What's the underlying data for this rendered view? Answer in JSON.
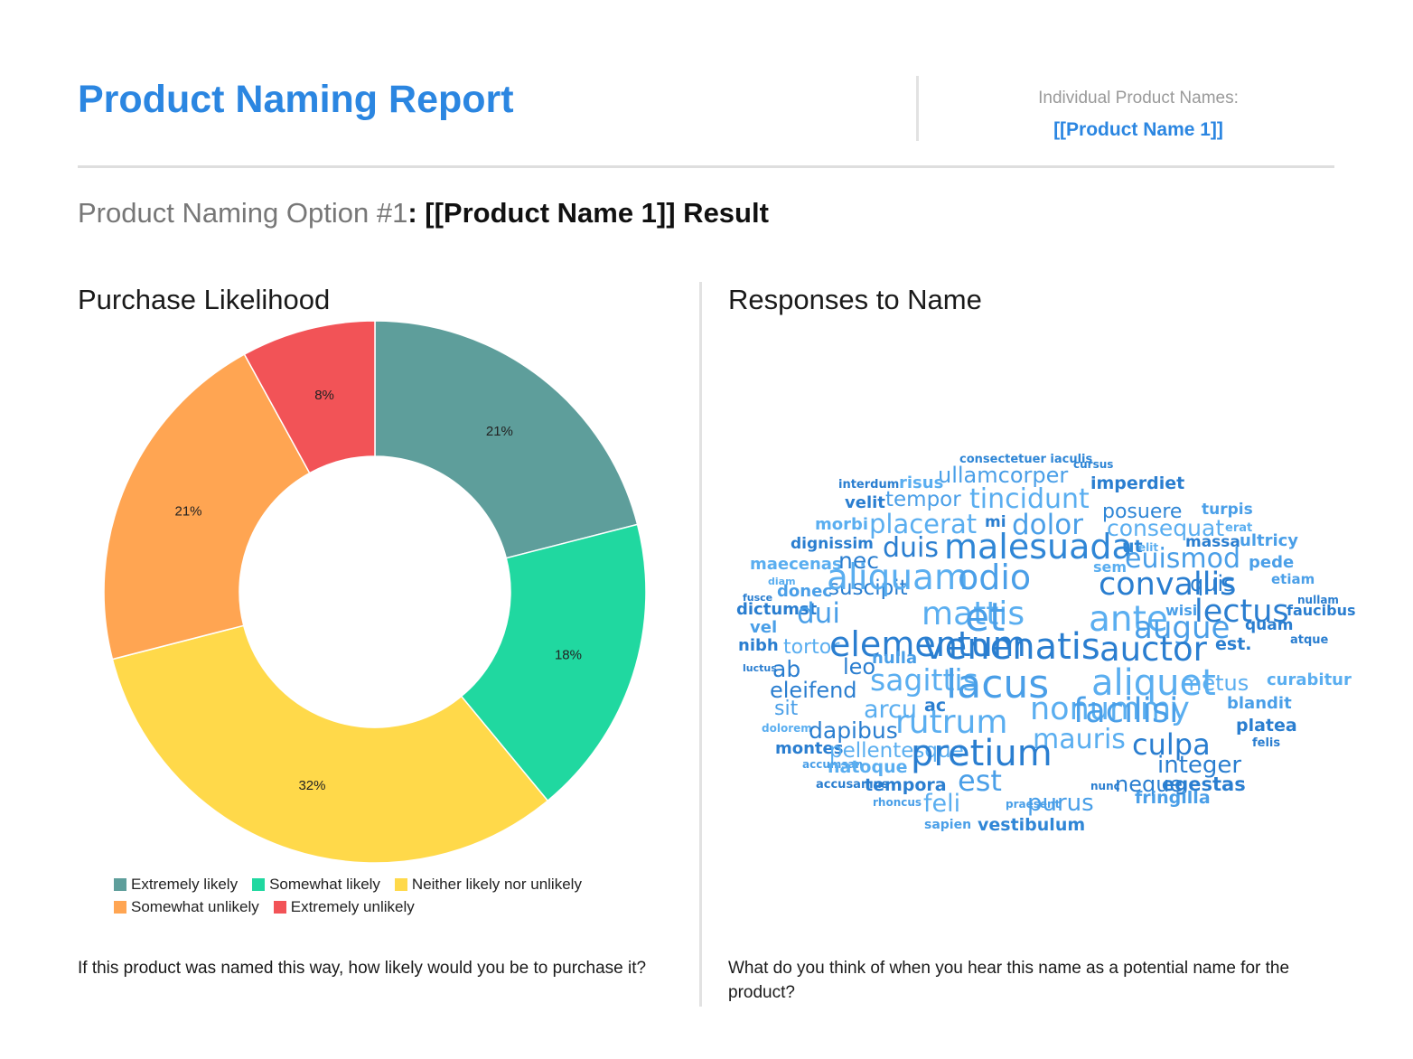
{
  "header": {
    "title": "Product Naming Report",
    "individual_label": "Individual Product Names:",
    "individual_value": "[[Product Name 1]]"
  },
  "option": {
    "prefix": "Product Naming Option #1",
    "colon": ":",
    "name": "[[Product Name 1]] Result"
  },
  "left": {
    "title": "Purchase Likelihood",
    "question": "If this product was named this way, how likely would you be to purchase it?"
  },
  "right": {
    "title": "Responses to Name",
    "question": "What do you think of when you hear this name as a potential name for the product?"
  },
  "chart_data": {
    "type": "pie",
    "donut": true,
    "categories": [
      "Extremely likely",
      "Somewhat likely",
      "Neither likely nor unlikely",
      "Somewhat unlikely",
      "Extremely unlikely"
    ],
    "values": [
      21,
      18,
      32,
      21,
      8
    ],
    "labels": [
      "21%",
      "18%",
      "32%",
      "21%",
      "8%"
    ],
    "colors": [
      "#5e9e9b",
      "#20d8a0",
      "#ffd94a",
      "#ffa552",
      "#f25357"
    ],
    "legend": "bottom"
  },
  "word_cloud": [
    {
      "text": "consectetuer iaculis",
      "color": "#2f86d6"
    },
    {
      "text": "cursus",
      "color": "#2f86d6"
    },
    {
      "text": "ullamcorper",
      "color": "#4a9fe8"
    },
    {
      "text": "interdum",
      "color": "#2a7ed0"
    },
    {
      "text": "risus",
      "color": "#5aaef0"
    },
    {
      "text": "imperdiet",
      "color": "#2a7ed0"
    },
    {
      "text": "velit",
      "color": "#2a7ed0"
    },
    {
      "text": "tempor",
      "color": "#4a9fe8"
    },
    {
      "text": "tincidunt",
      "color": "#5aaef0"
    },
    {
      "text": "posuere",
      "color": "#2f86d6"
    },
    {
      "text": "turpis",
      "color": "#4a9fe8"
    },
    {
      "text": "morbi",
      "color": "#5aaef0"
    },
    {
      "text": "placerat",
      "color": "#5aaef0"
    },
    {
      "text": "mi",
      "color": "#2a7ed0"
    },
    {
      "text": "dolor",
      "color": "#4a9fe8"
    },
    {
      "text": "consequat",
      "color": "#5aaef0"
    },
    {
      "text": "erat",
      "color": "#5aaef0"
    },
    {
      "text": "dignissim",
      "color": "#2a7ed0"
    },
    {
      "text": "duis",
      "color": "#2a7ed0"
    },
    {
      "text": "malesuada",
      "color": "#2f86d6"
    },
    {
      "text": "ut",
      "color": "#2f86d6"
    },
    {
      "text": "elit",
      "color": "#5aaef0"
    },
    {
      "text": "massa",
      "color": "#2a7ed0"
    },
    {
      "text": "ultricy",
      "color": "#4a9fe8"
    },
    {
      "text": "maecenas",
      "color": "#5aaef0"
    },
    {
      "text": "nec",
      "color": "#2a7ed0"
    },
    {
      "text": "sem",
      "color": "#5aaef0"
    },
    {
      "text": "euismod",
      "color": "#4a9fe8"
    },
    {
      "text": "pede",
      "color": "#4a9fe8"
    },
    {
      "text": "diam",
      "color": "#5aaef0"
    },
    {
      "text": "suscipit",
      "color": "#2a7ed0"
    },
    {
      "text": "aliquam",
      "color": "#5aaef0"
    },
    {
      "text": "odio",
      "color": "#4a9fe8"
    },
    {
      "text": "convallis",
      "color": "#2a7ed0"
    },
    {
      "text": "quis",
      "color": "#2a7ed0"
    },
    {
      "text": "etiam",
      "color": "#4a9fe8"
    },
    {
      "text": "fusce",
      "color": "#2a7ed0"
    },
    {
      "text": "donec",
      "color": "#4a9fe8"
    },
    {
      "text": "nullam",
      "color": "#2a7ed0"
    },
    {
      "text": "dictumst",
      "color": "#2a7ed0"
    },
    {
      "text": "dui",
      "color": "#4a9fe8"
    },
    {
      "text": "mattis",
      "color": "#5aaef0"
    },
    {
      "text": "et",
      "color": "#4a9fe8"
    },
    {
      "text": "ante",
      "color": "#5aaef0"
    },
    {
      "text": "wisi",
      "color": "#4a9fe8"
    },
    {
      "text": "lectus",
      "color": "#2a7ed0"
    },
    {
      "text": "faucibus",
      "color": "#2a7ed0"
    },
    {
      "text": "vel",
      "color": "#4a9fe8"
    },
    {
      "text": "augue",
      "color": "#4a9fe8"
    },
    {
      "text": "quam",
      "color": "#2a7ed0"
    },
    {
      "text": "nibh",
      "color": "#2a7ed0"
    },
    {
      "text": "tortor",
      "color": "#5aaef0"
    },
    {
      "text": "elementum",
      "color": "#2a7ed0"
    },
    {
      "text": "venenatis",
      "color": "#2a7ed0"
    },
    {
      "text": "auctor",
      "color": "#2a7ed0"
    },
    {
      "text": "est.",
      "color": "#2a7ed0"
    },
    {
      "text": "atque",
      "color": "#2a7ed0"
    },
    {
      "text": "luctus",
      "color": "#2a7ed0"
    },
    {
      "text": "ab",
      "color": "#2a7ed0"
    },
    {
      "text": "leo",
      "color": "#2a7ed0"
    },
    {
      "text": "nulla",
      "color": "#4a9fe8"
    },
    {
      "text": "sagittis",
      "color": "#5aaef0"
    },
    {
      "text": "lacus",
      "color": "#4a9fe8"
    },
    {
      "text": "aliquet",
      "color": "#5aaef0"
    },
    {
      "text": "metus",
      "color": "#5aaef0"
    },
    {
      "text": "curabitur",
      "color": "#5aaef0"
    },
    {
      "text": "eleifend",
      "color": "#2a7ed0"
    },
    {
      "text": "sit",
      "color": "#4a9fe8"
    },
    {
      "text": "arcu",
      "color": "#5aaef0"
    },
    {
      "text": "ac",
      "color": "#2a7ed0"
    },
    {
      "text": "nonummy",
      "color": "#5aaef0"
    },
    {
      "text": "facilisi",
      "color": "#4a9fe8"
    },
    {
      "text": "blandit",
      "color": "#4a9fe8"
    },
    {
      "text": "dolorem",
      "color": "#5aaef0"
    },
    {
      "text": "dapibus",
      "color": "#2a7ed0"
    },
    {
      "text": "rutrum",
      "color": "#5aaef0"
    },
    {
      "text": "mauris",
      "color": "#5aaef0"
    },
    {
      "text": "platea",
      "color": "#2a7ed0"
    },
    {
      "text": "montes",
      "color": "#2a7ed0"
    },
    {
      "text": "pellentesque",
      "color": "#5aaef0"
    },
    {
      "text": "pretium",
      "color": "#2a7ed0"
    },
    {
      "text": "culpa",
      "color": "#2a7ed0"
    },
    {
      "text": "felis",
      "color": "#2a7ed0"
    },
    {
      "text": "accumsan",
      "color": "#4a9fe8"
    },
    {
      "text": "natoque",
      "color": "#5aaef0"
    },
    {
      "text": "integer",
      "color": "#2a7ed0"
    },
    {
      "text": "accusamus",
      "color": "#2a7ed0"
    },
    {
      "text": "tempora",
      "color": "#2a7ed0"
    },
    {
      "text": "est",
      "color": "#4a9fe8"
    },
    {
      "text": "nunc",
      "color": "#2a7ed0"
    },
    {
      "text": "neque",
      "color": "#2a7ed0"
    },
    {
      "text": "egestas",
      "color": "#2a7ed0"
    },
    {
      "text": "rhoncus",
      "color": "#4a9fe8"
    },
    {
      "text": "feli",
      "color": "#5aaef0"
    },
    {
      "text": "praesent",
      "color": "#4a9fe8"
    },
    {
      "text": "purus",
      "color": "#4a9fe8"
    },
    {
      "text": "fringilla",
      "color": "#4a9fe8"
    },
    {
      "text": "sapien",
      "color": "#4a9fe8"
    },
    {
      "text": "vestibulum",
      "color": "#2f86d6"
    }
  ]
}
